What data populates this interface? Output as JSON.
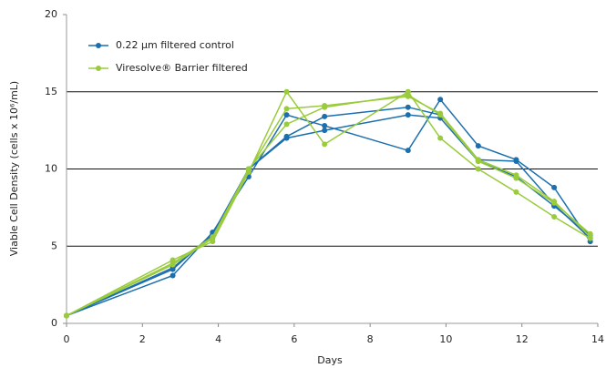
{
  "chart_data": {
    "type": "line",
    "x_label": "Days",
    "y_label": "Viable Cell Density (cells x 10⁶/mL)",
    "x": [
      0,
      2.8,
      3.85,
      4.8,
      5.8,
      6.8,
      9.0,
      9.85,
      10.85,
      11.85,
      12.85,
      13.8
    ],
    "series": [
      {
        "name": "0.22 µm filtered control",
        "color": "#1b6fae",
        "runs": [
          [
            0.5,
            3.1,
            5.9,
            9.5,
            13.5,
            12.8,
            11.2,
            14.5,
            11.5,
            10.6,
            8.8,
            5.3
          ],
          [
            0.5,
            3.5,
            5.8,
            10.0,
            12.1,
            13.4,
            14.0,
            13.5,
            10.6,
            10.5,
            7.7,
            5.5
          ],
          [
            0.5,
            3.6,
            5.7,
            10.0,
            12.0,
            12.5,
            13.5,
            13.3,
            10.5,
            9.5,
            7.6,
            5.7
          ]
        ]
      },
      {
        "name": "Viresolve® Barrier filtered",
        "color": "#9acb3c",
        "runs": [
          [
            0.5,
            4.1,
            5.3,
            9.8,
            15.0,
            11.6,
            15.0,
            12.0,
            10.0,
            8.5,
            6.9,
            5.5
          ],
          [
            0.5,
            3.8,
            5.5,
            9.9,
            13.9,
            14.1,
            14.7,
            13.6,
            10.6,
            9.6,
            7.9,
            5.6
          ],
          [
            0.5,
            3.9,
            5.6,
            10.0,
            12.9,
            14.0,
            14.8,
            13.5,
            10.5,
            9.4,
            7.8,
            5.8
          ]
        ]
      }
    ],
    "xlim": [
      0,
      14
    ],
    "ylim": [
      0,
      20
    ],
    "xticks": [
      0,
      2,
      4,
      6,
      8,
      10,
      12,
      14
    ],
    "yticks": [
      0,
      5,
      10,
      15,
      20
    ],
    "grid": true,
    "legend": "upper-left"
  }
}
